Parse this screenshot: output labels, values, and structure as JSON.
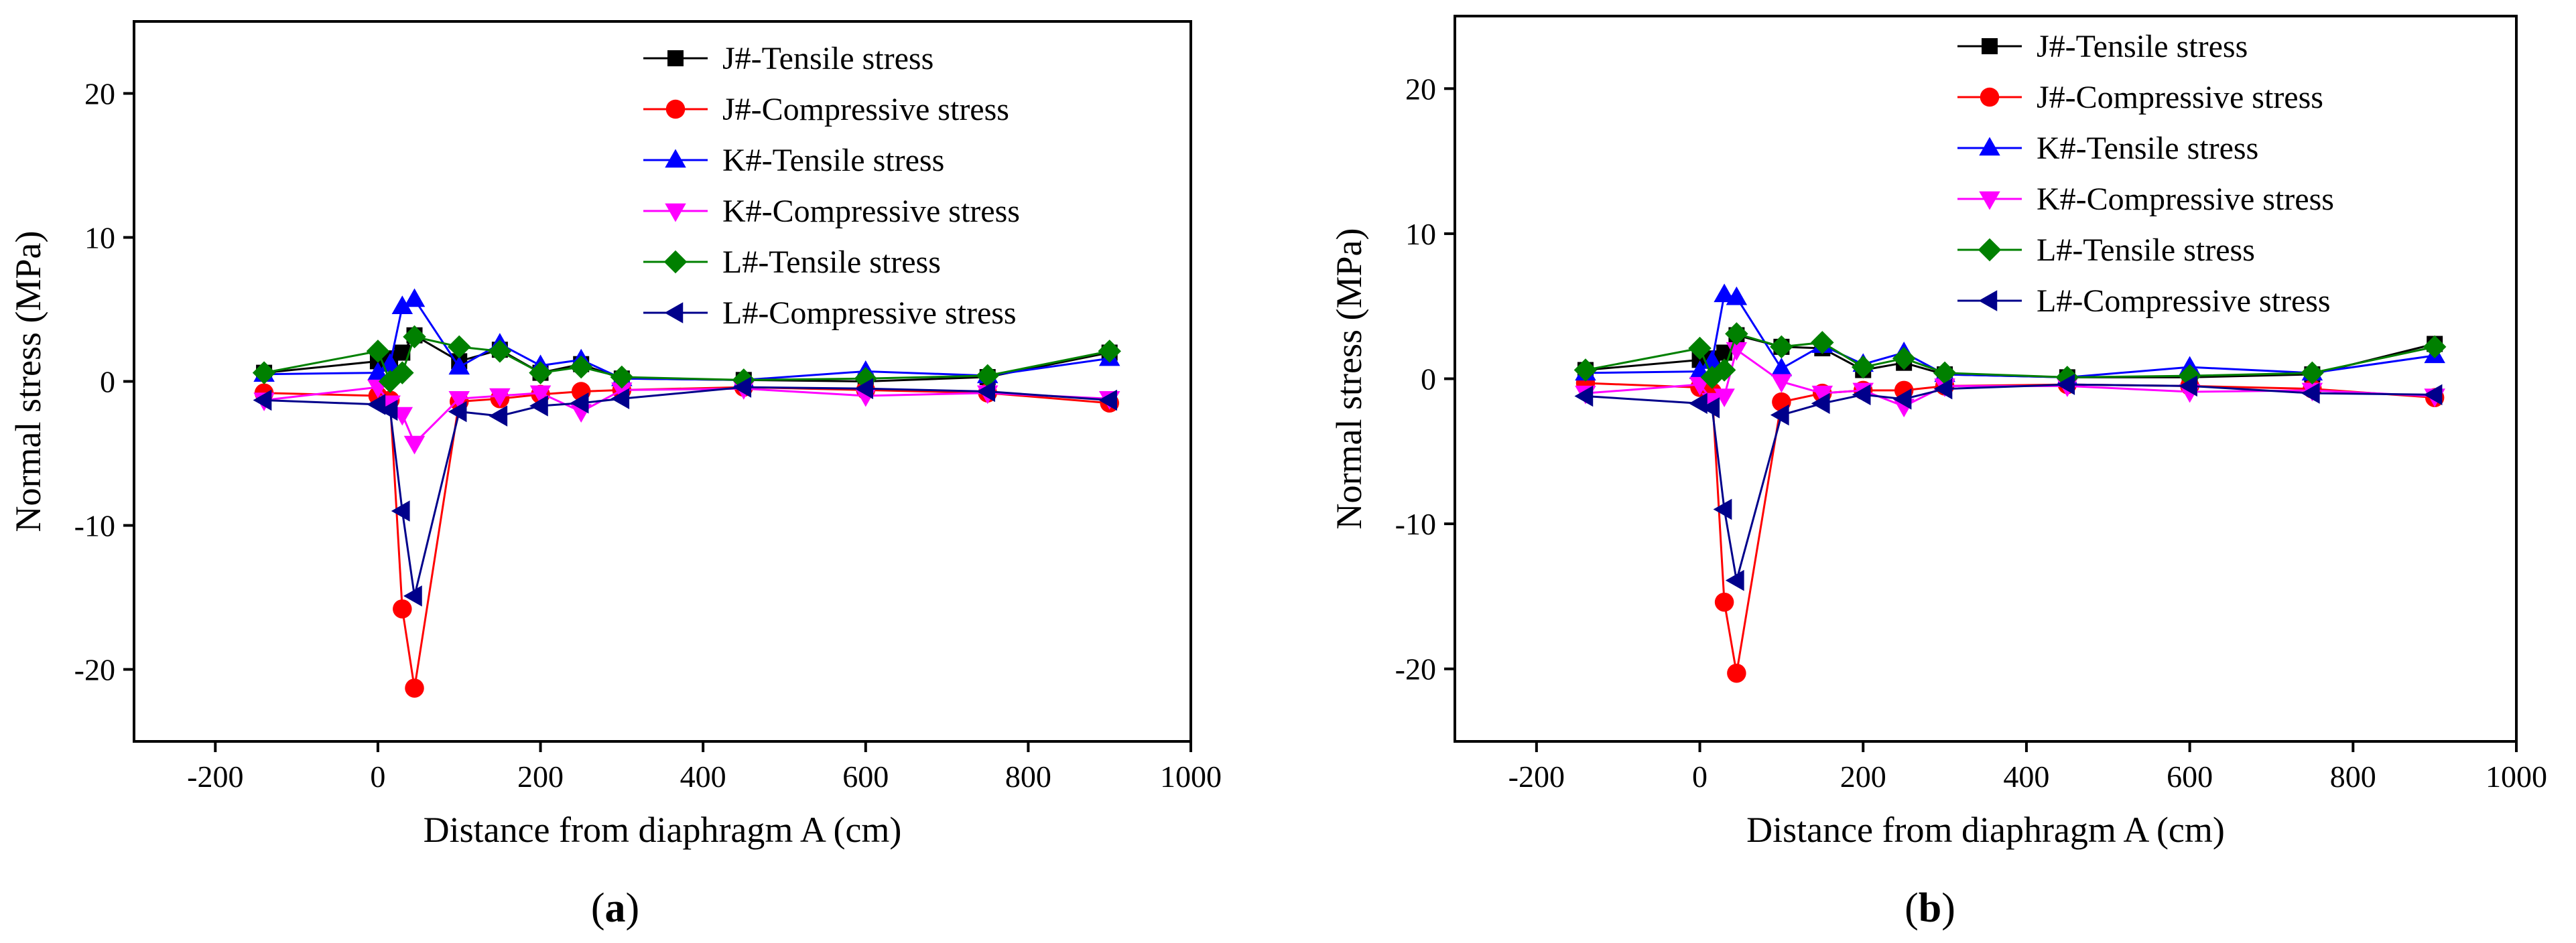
{
  "chart_data": [
    {
      "type": "line",
      "panel_label": "a",
      "xlabel": "Distance from diaphragm A (cm)",
      "ylabel": "Normal stress (MPa)",
      "xlim": [
        -300,
        1000
      ],
      "ylim": [
        -25,
        25
      ],
      "xticks": [
        -200,
        0,
        200,
        400,
        600,
        800,
        1000
      ],
      "yticks": [
        -20,
        -10,
        0,
        10,
        20
      ],
      "legend_position": "top-right",
      "series": [
        {
          "name": "J#-Tensile stress",
          "color": "#000000",
          "marker": "square",
          "x": [
            -140,
            0,
            15,
            30,
            45,
            100,
            150,
            200,
            250,
            300,
            450,
            600,
            750,
            900
          ],
          "y": [
            0.6,
            1.4,
            1.6,
            2.0,
            3.2,
            1.4,
            2.2,
            0.6,
            1.2,
            0.2,
            0.1,
            0.0,
            0.3,
            2.0
          ]
        },
        {
          "name": "J#-Compressive stress",
          "color": "#FF0000",
          "marker": "circle",
          "x": [
            -140,
            0,
            15,
            30,
            45,
            100,
            150,
            200,
            250,
            300,
            450,
            600,
            750,
            900
          ],
          "y": [
            -0.8,
            -1.0,
            -1.3,
            -15.8,
            -21.3,
            -1.4,
            -1.2,
            -0.9,
            -0.7,
            -0.6,
            -0.4,
            -0.6,
            -0.8,
            -1.5
          ]
        },
        {
          "name": "K#-Tensile stress",
          "color": "#0000FF",
          "marker": "triangle-up",
          "x": [
            -140,
            0,
            15,
            30,
            45,
            100,
            150,
            200,
            250,
            300,
            450,
            600,
            750,
            900
          ],
          "y": [
            0.5,
            0.6,
            1.2,
            5.2,
            5.7,
            1.0,
            2.6,
            1.1,
            1.5,
            0.2,
            0.1,
            0.7,
            0.4,
            1.6
          ]
        },
        {
          "name": "K#-Compressive stress",
          "color": "#FF00FF",
          "marker": "triangle-down",
          "x": [
            -140,
            0,
            15,
            30,
            45,
            100,
            150,
            200,
            250,
            300,
            450,
            600,
            750,
            900
          ],
          "y": [
            -1.3,
            -0.4,
            -1.5,
            -2.3,
            -4.3,
            -1.2,
            -1.0,
            -0.8,
            -2.1,
            -0.6,
            -0.5,
            -1.0,
            -0.8,
            -1.2
          ]
        },
        {
          "name": "L#-Tensile stress",
          "color": "#008000",
          "marker": "diamond",
          "x": [
            -140,
            0,
            15,
            30,
            45,
            100,
            150,
            200,
            250,
            300,
            450,
            600,
            750,
            900
          ],
          "y": [
            0.6,
            2.1,
            0.0,
            0.6,
            3.1,
            2.4,
            2.1,
            0.6,
            1.0,
            0.3,
            0.1,
            0.2,
            0.4,
            2.1
          ]
        },
        {
          "name": "L#-Compressive stress",
          "color": "#00008B",
          "marker": "triangle-left",
          "x": [
            -140,
            0,
            15,
            30,
            45,
            100,
            150,
            200,
            250,
            300,
            450,
            600,
            750,
            900
          ],
          "y": [
            -1.3,
            -1.6,
            -2.0,
            -9.0,
            -14.9,
            -2.1,
            -2.4,
            -1.7,
            -1.5,
            -1.2,
            -0.4,
            -0.5,
            -0.7,
            -1.3
          ]
        }
      ]
    },
    {
      "type": "line",
      "panel_label": "b",
      "xlabel": "Distance from diaphragm A (cm)",
      "ylabel": "Normal stress (MPa)",
      "xlim": [
        -300,
        1000
      ],
      "ylim": [
        -25,
        25
      ],
      "xticks": [
        -200,
        0,
        200,
        400,
        600,
        800,
        1000
      ],
      "yticks": [
        -20,
        -10,
        0,
        10,
        20
      ],
      "legend_position": "top-right",
      "series": [
        {
          "name": "J#-Tensile stress",
          "color": "#000000",
          "marker": "square",
          "x": [
            -140,
            0,
            15,
            30,
            45,
            100,
            150,
            200,
            250,
            300,
            450,
            600,
            750,
            900
          ],
          "y": [
            0.6,
            1.3,
            1.4,
            1.8,
            3.0,
            2.2,
            2.1,
            0.6,
            1.1,
            0.3,
            0.1,
            0.1,
            0.3,
            2.4
          ]
        },
        {
          "name": "J#-Compressive stress",
          "color": "#FF0000",
          "marker": "circle",
          "x": [
            -140,
            0,
            15,
            30,
            45,
            100,
            150,
            200,
            250,
            300,
            450,
            600,
            750,
            900
          ],
          "y": [
            -0.3,
            -0.6,
            -0.9,
            -15.4,
            -20.3,
            -1.6,
            -1.0,
            -0.8,
            -0.8,
            -0.5,
            -0.4,
            -0.5,
            -0.7,
            -1.3
          ]
        },
        {
          "name": "K#-Tensile stress",
          "color": "#0000FF",
          "marker": "triangle-up",
          "x": [
            -140,
            0,
            15,
            30,
            45,
            100,
            150,
            200,
            250,
            300,
            450,
            600,
            750,
            900
          ],
          "y": [
            0.4,
            0.5,
            1.2,
            5.8,
            5.6,
            0.7,
            2.3,
            1.0,
            1.8,
            0.3,
            0.1,
            0.8,
            0.4,
            1.6
          ]
        },
        {
          "name": "K#-Compressive stress",
          "color": "#FF00FF",
          "marker": "triangle-down",
          "x": [
            -140,
            0,
            15,
            30,
            45,
            100,
            150,
            200,
            250,
            300,
            450,
            600,
            750,
            900
          ],
          "y": [
            -1.0,
            -0.4,
            -1.5,
            -1.2,
            2.0,
            -0.2,
            -1.0,
            -0.8,
            -1.9,
            -0.5,
            -0.5,
            -0.9,
            -0.8,
            -1.2
          ]
        },
        {
          "name": "L#-Tensile stress",
          "color": "#008000",
          "marker": "diamond",
          "x": [
            -140,
            0,
            15,
            30,
            45,
            100,
            150,
            200,
            250,
            300,
            450,
            600,
            750,
            900
          ],
          "y": [
            0.6,
            2.1,
            0.1,
            0.6,
            3.1,
            2.2,
            2.5,
            0.8,
            1.4,
            0.4,
            0.1,
            0.2,
            0.4,
            2.2
          ]
        },
        {
          "name": "L#-Compressive stress",
          "color": "#00008B",
          "marker": "triangle-left",
          "x": [
            -140,
            0,
            15,
            30,
            45,
            100,
            150,
            200,
            250,
            300,
            450,
            600,
            750,
            900
          ],
          "y": [
            -1.2,
            -1.7,
            -2.0,
            -9.0,
            -13.9,
            -2.5,
            -1.7,
            -1.1,
            -1.4,
            -0.7,
            -0.4,
            -0.5,
            -1.0,
            -1.1
          ]
        }
      ]
    }
  ]
}
